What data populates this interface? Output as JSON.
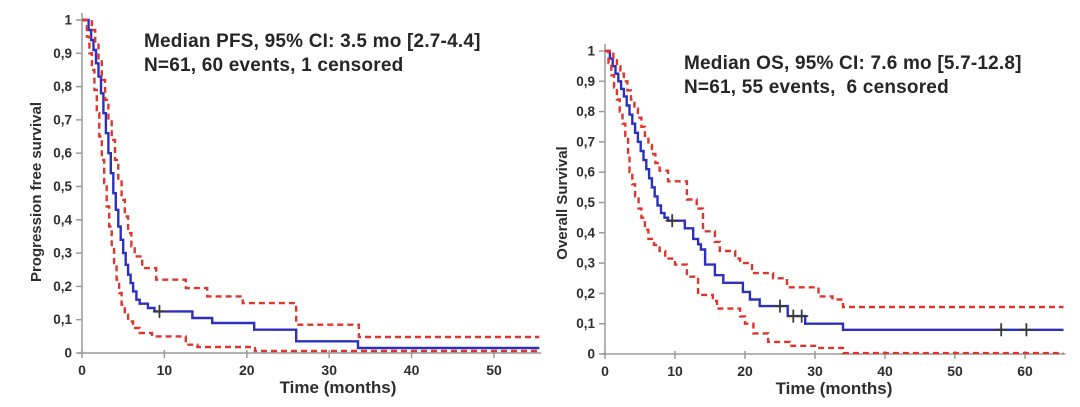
{
  "figure": {
    "background": "#ffffff",
    "colors": {
      "survival_line": "#2c31bd",
      "confidence_interval": "#de352c",
      "censor_mark": "#3a3a3a",
      "axis": "#9a9a9a",
      "text": "#262626"
    }
  },
  "chart_data": [
    {
      "id": "pfs",
      "type": "line",
      "subtype": "kaplan-meier-step",
      "title_line1": "Median PFS, 95% CI: 3.5 mo [2.7-4.4]",
      "title_line2": "N=61, 60 events, 1 censored",
      "median_months": 3.5,
      "ci_95": [
        2.7,
        4.4
      ],
      "n": 61,
      "events": 60,
      "censored": 1,
      "xlabel": "Time (months)",
      "ylabel": "Progression free survival",
      "xlim": [
        0,
        55.5
      ],
      "ylim": [
        0,
        1
      ],
      "xticks": [
        0,
        10,
        20,
        30,
        40,
        50
      ],
      "ytick_values": [
        1,
        0.9,
        0.8,
        0.7,
        0.6,
        0.5,
        0.4,
        0.3,
        0.2,
        0.1,
        0
      ],
      "ytick_labels": [
        "1",
        "0,9",
        "0,8",
        "0,7",
        "0,6",
        "0,5",
        "0,4",
        "0,3",
        "0,2",
        "0,1",
        "0"
      ],
      "grid": false,
      "legend": "none",
      "series": [
        {
          "name": "PFS survival estimate",
          "color": "#2c31bd",
          "style": "solid",
          "steps": [
            [
              0,
              1
            ],
            [
              0.8,
              0.97
            ],
            [
              1.1,
              0.94
            ],
            [
              1.4,
              0.91
            ],
            [
              1.7,
              0.87
            ],
            [
              2.0,
              0.83
            ],
            [
              2.3,
              0.78
            ],
            [
              2.6,
              0.72
            ],
            [
              2.9,
              0.66
            ],
            [
              3.2,
              0.6
            ],
            [
              3.5,
              0.54
            ],
            [
              3.8,
              0.48
            ],
            [
              4.1,
              0.43
            ],
            [
              4.4,
              0.38
            ],
            [
              4.7,
              0.34
            ],
            [
              5.0,
              0.3
            ],
            [
              5.3,
              0.265
            ],
            [
              5.6,
              0.235
            ],
            [
              5.9,
              0.21
            ],
            [
              6.2,
              0.185
            ],
            [
              6.6,
              0.16
            ],
            [
              7.0,
              0.148
            ],
            [
              8.0,
              0.135
            ],
            [
              8.8,
              0.125
            ],
            [
              13.4,
              0.105
            ],
            [
              15.8,
              0.09
            ],
            [
              20.9,
              0.07
            ],
            [
              26.0,
              0.035
            ],
            [
              33.5,
              0.015
            ],
            [
              55.5,
              0.015
            ]
          ]
        },
        {
          "name": "95% CI upper bound",
          "color": "#de352c",
          "style": "dashed",
          "steps": [
            [
              0,
              1
            ],
            [
              1.2,
              0.97
            ],
            [
              1.6,
              0.93
            ],
            [
              2.0,
              0.88
            ],
            [
              2.4,
              0.82
            ],
            [
              2.8,
              0.76
            ],
            [
              3.2,
              0.7
            ],
            [
              3.6,
              0.64
            ],
            [
              4.0,
              0.58
            ],
            [
              4.4,
              0.52
            ],
            [
              4.8,
              0.46
            ],
            [
              5.2,
              0.41
            ],
            [
              5.6,
              0.36
            ],
            [
              6.0,
              0.32
            ],
            [
              6.4,
              0.29
            ],
            [
              7.3,
              0.255
            ],
            [
              9.0,
              0.22
            ],
            [
              12.6,
              0.195
            ],
            [
              15.2,
              0.17
            ],
            [
              19.5,
              0.15
            ],
            [
              26.0,
              0.085
            ],
            [
              33.6,
              0.048
            ],
            [
              55.5,
              0.048
            ]
          ]
        },
        {
          "name": "95% CI lower bound",
          "color": "#de352c",
          "style": "dashed",
          "steps": [
            [
              0,
              1
            ],
            [
              0.6,
              0.95
            ],
            [
              0.9,
              0.9
            ],
            [
              1.2,
              0.85
            ],
            [
              1.5,
              0.79
            ],
            [
              1.8,
              0.72
            ],
            [
              2.1,
              0.65
            ],
            [
              2.4,
              0.58
            ],
            [
              2.7,
              0.51
            ],
            [
              3.0,
              0.44
            ],
            [
              3.3,
              0.38
            ],
            [
              3.6,
              0.32
            ],
            [
              3.9,
              0.27
            ],
            [
              4.2,
              0.22
            ],
            [
              4.5,
              0.18
            ],
            [
              4.8,
              0.145
            ],
            [
              5.2,
              0.115
            ],
            [
              5.6,
              0.095
            ],
            [
              6.2,
              0.075
            ],
            [
              7.0,
              0.06
            ],
            [
              8.5,
              0.05
            ],
            [
              12.6,
              0.025
            ],
            [
              14.0,
              0.018
            ],
            [
              21.0,
              0.006
            ],
            [
              55.5,
              0.006
            ]
          ]
        }
      ],
      "censor_marks": [
        [
          9.4,
          0.125
        ]
      ]
    },
    {
      "id": "os",
      "type": "line",
      "subtype": "kaplan-meier-step",
      "title_line1": "Median OS, 95% CI: 7.6 mo [5.7-12.8]",
      "title_line2": "N=61, 55 events,  6 censored",
      "median_months": 7.6,
      "ci_95": [
        5.7,
        12.8
      ],
      "n": 61,
      "events": 55,
      "censored": 6,
      "xlabel": "Time (months)",
      "ylabel": "Overall Survival",
      "xlim": [
        0,
        65.5
      ],
      "ylim": [
        0,
        1
      ],
      "xticks": [
        0,
        10,
        20,
        30,
        40,
        50,
        60
      ],
      "ytick_values": [
        1,
        0.9,
        0.8,
        0.7,
        0.6,
        0.5,
        0.4,
        0.3,
        0.2,
        0.1,
        0
      ],
      "ytick_labels": [
        "1",
        "0,9",
        "0,8",
        "0,7",
        "0,6",
        "0,5",
        "0,4",
        "0,3",
        "0,2",
        "0,1",
        "0"
      ],
      "grid": false,
      "legend": "none",
      "series": [
        {
          "name": "OS survival estimate",
          "color": "#2c31bd",
          "style": "solid",
          "steps": [
            [
              0,
              1
            ],
            [
              0.7,
              0.975
            ],
            [
              1.1,
              0.95
            ],
            [
              1.5,
              0.925
            ],
            [
              1.9,
              0.9
            ],
            [
              2.3,
              0.875
            ],
            [
              2.7,
              0.85
            ],
            [
              3.1,
              0.82
            ],
            [
              3.5,
              0.79
            ],
            [
              3.9,
              0.76
            ],
            [
              4.3,
              0.73
            ],
            [
              4.7,
              0.7
            ],
            [
              5.1,
              0.67
            ],
            [
              5.5,
              0.64
            ],
            [
              5.9,
              0.61
            ],
            [
              6.3,
              0.58
            ],
            [
              6.7,
              0.55
            ],
            [
              7.1,
              0.52
            ],
            [
              7.5,
              0.49
            ],
            [
              8.0,
              0.465
            ],
            [
              8.5,
              0.45
            ],
            [
              9.0,
              0.44
            ],
            [
              11.4,
              0.415
            ],
            [
              12.6,
              0.38
            ],
            [
              13.3,
              0.362
            ],
            [
              13.7,
              0.345
            ],
            [
              14.3,
              0.295
            ],
            [
              15.7,
              0.26
            ],
            [
              16.9,
              0.235
            ],
            [
              19.7,
              0.205
            ],
            [
              20.7,
              0.18
            ],
            [
              22.1,
              0.158
            ],
            [
              26.1,
              0.125
            ],
            [
              28.6,
              0.1
            ],
            [
              34.0,
              0.08
            ],
            [
              65.5,
              0.08
            ]
          ]
        },
        {
          "name": "95% CI upper bound",
          "color": "#de352c",
          "style": "dashed",
          "steps": [
            [
              0,
              1
            ],
            [
              1.2,
              0.975
            ],
            [
              1.7,
              0.95
            ],
            [
              2.2,
              0.925
            ],
            [
              2.7,
              0.9
            ],
            [
              3.2,
              0.87
            ],
            [
              3.7,
              0.84
            ],
            [
              4.2,
              0.81
            ],
            [
              4.7,
              0.78
            ],
            [
              5.2,
              0.75
            ],
            [
              5.7,
              0.72
            ],
            [
              6.2,
              0.69
            ],
            [
              6.7,
              0.66
            ],
            [
              7.2,
              0.63
            ],
            [
              7.8,
              0.605
            ],
            [
              9.0,
              0.57
            ],
            [
              11.7,
              0.51
            ],
            [
              13.1,
              0.48
            ],
            [
              14.0,
              0.405
            ],
            [
              15.7,
              0.37
            ],
            [
              16.4,
              0.34
            ],
            [
              18.6,
              0.315
            ],
            [
              19.3,
              0.3
            ],
            [
              21.0,
              0.267
            ],
            [
              24.0,
              0.25
            ],
            [
              26.0,
              0.22
            ],
            [
              30.5,
              0.19
            ],
            [
              32.5,
              0.18
            ],
            [
              34.0,
              0.155
            ],
            [
              65.5,
              0.155
            ]
          ]
        },
        {
          "name": "95% CI lower bound",
          "color": "#de352c",
          "style": "dashed",
          "steps": [
            [
              0,
              1
            ],
            [
              0.5,
              0.96
            ],
            [
              0.9,
              0.92
            ],
            [
              1.3,
              0.88
            ],
            [
              1.7,
              0.84
            ],
            [
              2.1,
              0.8
            ],
            [
              2.5,
              0.76
            ],
            [
              2.9,
              0.72
            ],
            [
              3.3,
              0.66
            ],
            [
              3.5,
              0.6
            ],
            [
              3.9,
              0.56
            ],
            [
              4.3,
              0.52
            ],
            [
              4.8,
              0.48
            ],
            [
              5.2,
              0.45
            ],
            [
              5.7,
              0.41
            ],
            [
              6.2,
              0.38
            ],
            [
              7.0,
              0.36
            ],
            [
              7.8,
              0.34
            ],
            [
              8.6,
              0.315
            ],
            [
              10.0,
              0.295
            ],
            [
              11.7,
              0.255
            ],
            [
              13.3,
              0.195
            ],
            [
              15.4,
              0.175
            ],
            [
              16.0,
              0.15
            ],
            [
              19.3,
              0.124
            ],
            [
              20.0,
              0.1
            ],
            [
              21.2,
              0.068
            ],
            [
              23.3,
              0.04
            ],
            [
              26.4,
              0.027
            ],
            [
              30.3,
              0.02
            ],
            [
              34.0,
              0.003
            ],
            [
              65.5,
              0.003
            ]
          ]
        }
      ],
      "censor_marks": [
        [
          9.6,
          0.44
        ],
        [
          25.0,
          0.158
        ],
        [
          26.9,
          0.125
        ],
        [
          28.1,
          0.125
        ],
        [
          56.6,
          0.08
        ],
        [
          60.2,
          0.08
        ]
      ]
    }
  ]
}
